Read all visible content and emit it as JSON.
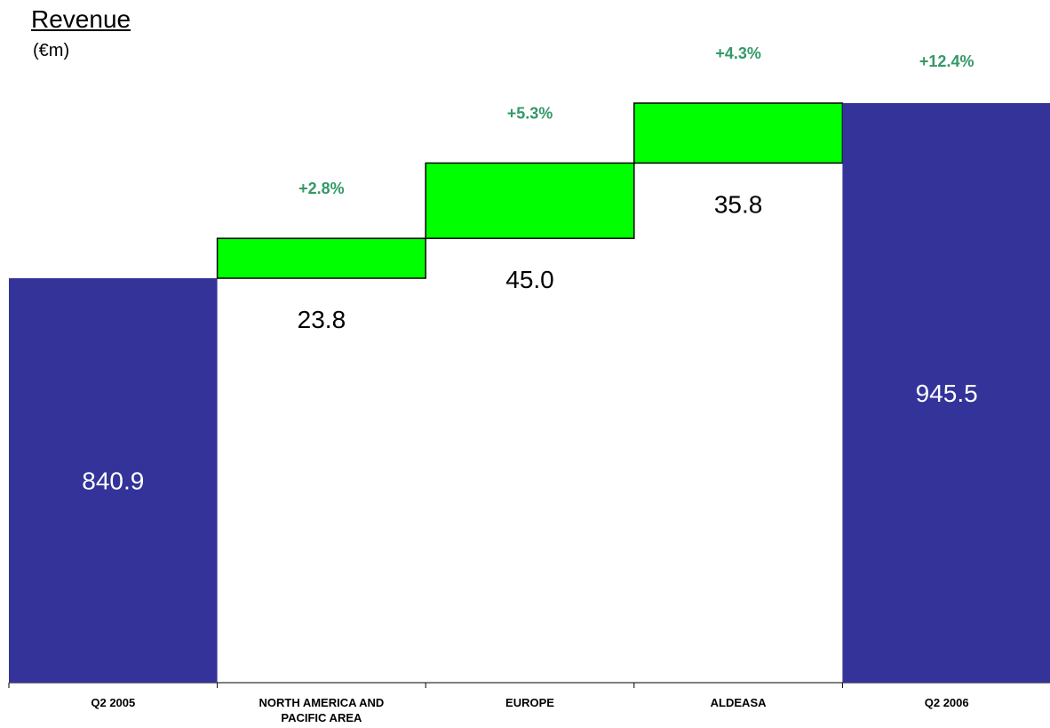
{
  "chart_data": {
    "type": "bar",
    "subtype": "waterfall",
    "title": "Revenue",
    "unit": "(€m)",
    "categories": [
      "Q2 2005",
      "NORTH AMERICA AND PACIFIC AREA",
      "EUROPE",
      "ALDEASA",
      "Q2 2006"
    ],
    "category_lines": [
      [
        "Q2 2005"
      ],
      [
        "NORTH AMERICA AND",
        "PACIFIC AREA"
      ],
      [
        "EUROPE"
      ],
      [
        "ALDEASA"
      ],
      [
        "Q2 2006"
      ]
    ],
    "bars": [
      {
        "kind": "total",
        "value": 840.9,
        "label": "840.9"
      },
      {
        "kind": "increase",
        "value": 23.8,
        "label": "23.8",
        "change": "+2.8%"
      },
      {
        "kind": "increase",
        "value": 45.0,
        "label": "45.0",
        "change": "+5.3%"
      },
      {
        "kind": "increase",
        "value": 35.8,
        "label": "35.8",
        "change": "+4.3%"
      },
      {
        "kind": "total",
        "value": 945.5,
        "label": "945.5",
        "change": "+12.4%"
      }
    ],
    "colors": {
      "total": "#333399",
      "increase": "#00ff00",
      "change_text": "#339966",
      "total_text": "#ffffff",
      "increase_text": "#000000"
    }
  }
}
